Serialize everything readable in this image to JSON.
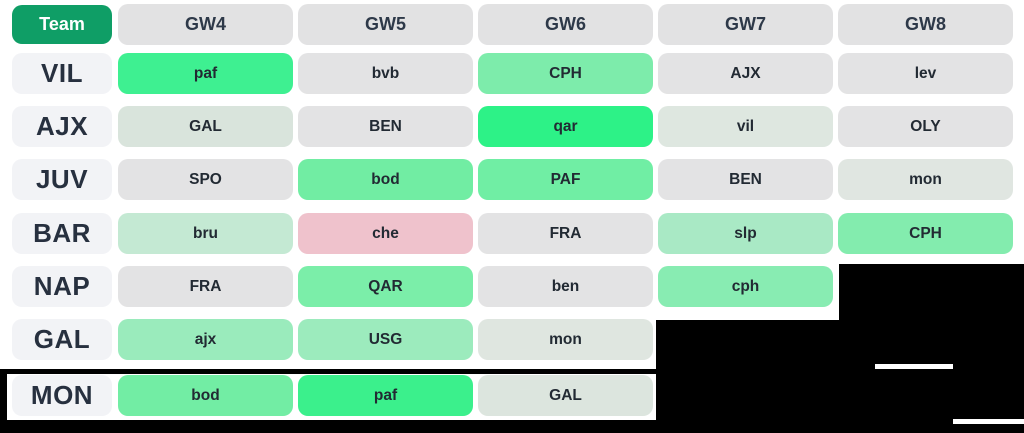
{
  "colors": {
    "team_button_bg": "#0f9e66",
    "header_bg": "#e2e2e3",
    "team_cell_bg": "#f2f3f6",
    "difficulty_easiest_green": "#2df287",
    "difficulty_easy_green": "#7decab",
    "difficulty_light_green": "#a9e9c5",
    "difficulty_pale_green": "#c4e9d3",
    "difficulty_neutral_green_gray": "#dee7e0",
    "difficulty_neutral_gray": "#e3e3e4",
    "difficulty_hard_pink": "#efc2cc"
  },
  "table": {
    "header": {
      "team_label": "Team",
      "gameweeks": [
        "GW4",
        "GW5",
        "GW6",
        "GW7",
        "GW8"
      ]
    },
    "selected_team": "MON",
    "rows": [
      {
        "team": "VIL",
        "fixtures": [
          {
            "opponent": "paf",
            "color": "#3ef091"
          },
          {
            "opponent": "bvb",
            "color": "#e3e3e4"
          },
          {
            "opponent": "CPH",
            "color": "#7decab"
          },
          {
            "opponent": "AJX",
            "color": "#e3e3e4"
          },
          {
            "opponent": "lev",
            "color": "#e3e3e4"
          }
        ]
      },
      {
        "team": "AJX",
        "fixtures": [
          {
            "opponent": "GAL",
            "color": "#d9e4dc"
          },
          {
            "opponent": "BEN",
            "color": "#e3e3e4"
          },
          {
            "opponent": "qar",
            "color": "#2df287"
          },
          {
            "opponent": "vil",
            "color": "#dee7e0"
          },
          {
            "opponent": "OLY",
            "color": "#e3e3e4"
          }
        ]
      },
      {
        "team": "JUV",
        "fixtures": [
          {
            "opponent": "SPO",
            "color": "#e3e3e4"
          },
          {
            "opponent": "bod",
            "color": "#71eda3"
          },
          {
            "opponent": "PAF",
            "color": "#70eea4"
          },
          {
            "opponent": "BEN",
            "color": "#e3e3e4"
          },
          {
            "opponent": "mon",
            "color": "#e0e6e1"
          }
        ]
      },
      {
        "team": "BAR",
        "fixtures": [
          {
            "opponent": "bru",
            "color": "#c4e9d3"
          },
          {
            "opponent": "che",
            "color": "#efc2cc"
          },
          {
            "opponent": "FRA",
            "color": "#e3e3e4"
          },
          {
            "opponent": "slp",
            "color": "#a9e9c5"
          },
          {
            "opponent": "CPH",
            "color": "#83ecae"
          }
        ]
      },
      {
        "team": "NAP",
        "fixtures": [
          {
            "opponent": "FRA",
            "color": "#e3e3e4"
          },
          {
            "opponent": "QAR",
            "color": "#7beea9"
          },
          {
            "opponent": "ben",
            "color": "#e3e3e4"
          },
          {
            "opponent": "cph",
            "color": "#88ecb2"
          },
          null
        ]
      },
      {
        "team": "GAL",
        "fixtures": [
          {
            "opponent": "ajx",
            "color": "#9aebbc"
          },
          {
            "opponent": "USG",
            "color": "#9cebbd"
          },
          {
            "opponent": "mon",
            "color": "#dfe6e0"
          },
          null,
          null
        ]
      },
      {
        "team": "MON",
        "fixtures": [
          {
            "opponent": "bod",
            "color": "#72eda4"
          },
          {
            "opponent": "paf",
            "color": "#3bf08c"
          },
          {
            "opponent": "GAL",
            "color": "#dce5de"
          },
          null,
          null
        ]
      }
    ]
  }
}
